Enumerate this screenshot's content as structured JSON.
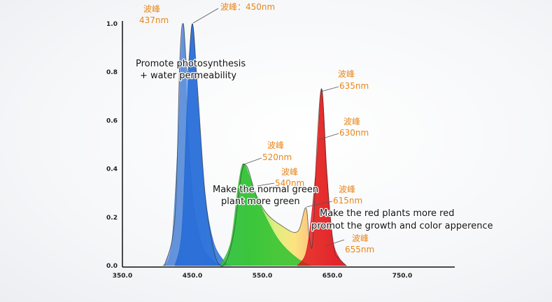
{
  "chart_data": {
    "type": "area",
    "title": "",
    "xlabel": "",
    "ylabel": "",
    "xlim": [
      350,
      750
    ],
    "ylim": [
      0,
      1.0
    ],
    "x_ticks": [
      "350.0",
      "450.0",
      "550.0",
      "650.0",
      "750.0"
    ],
    "y_ticks": [
      "0.0",
      "0.2",
      "0.4",
      "0.6",
      "0.8",
      "1.0"
    ],
    "grid": false,
    "series": [
      {
        "color": "#5b8fd6",
        "x": [
          408,
          420,
          430,
          437,
          443,
          452,
          465,
          480,
          490,
          500
        ],
        "y": [
          0,
          0.08,
          0.55,
          1.0,
          0.6,
          0.25,
          0.08,
          0.02,
          0.005,
          0
        ]
      },
      {
        "color": "#1f67d6",
        "x": [
          425,
          435,
          443,
          450,
          457,
          468,
          480,
          495,
          505
        ],
        "y": [
          0,
          0.15,
          0.7,
          1.0,
          0.72,
          0.3,
          0.1,
          0.02,
          0
        ]
      },
      {
        "color": "#2fc12f",
        "x": [
          490,
          505,
          515,
          522,
          530,
          540,
          555,
          575,
          600,
          620
        ],
        "y": [
          0,
          0.1,
          0.32,
          0.42,
          0.38,
          0.3,
          0.2,
          0.1,
          0.03,
          0
        ]
      },
      {
        "color": "#e0101a",
        "x": [
          600,
          612,
          620,
          628,
          635,
          642,
          650,
          660,
          670
        ],
        "y": [
          0,
          0.05,
          0.2,
          0.45,
          0.73,
          0.4,
          0.12,
          0.03,
          0
        ]
      }
    ],
    "overall_curve": {
      "x": [
        410,
        425,
        432,
        437,
        443,
        450,
        457,
        468,
        480,
        490,
        500,
        510,
        520,
        528,
        540,
        555,
        575,
        600,
        612,
        617,
        622,
        628,
        635,
        642,
        652,
        660,
        670
      ],
      "y": [
        0,
        0.2,
        0.85,
        1.0,
        0.8,
        1.0,
        0.75,
        0.3,
        0.07,
        0.0,
        0.03,
        0.15,
        0.38,
        0.41,
        0.3,
        0.22,
        0.17,
        0.14,
        0.24,
        0.12,
        0.1,
        0.5,
        0.73,
        0.38,
        0.08,
        0.03,
        0
      ]
    },
    "annotations": {
      "p437": {
        "label": "波峰",
        "value": "437nm"
      },
      "p450": {
        "label": "波峰：450nm"
      },
      "p635": {
        "label": "波峰",
        "value": "635nm"
      },
      "p630": {
        "label": "波峰",
        "value": "630nm"
      },
      "p520": {
        "label": "波峰",
        "value": "520nm"
      },
      "p540": {
        "label": "波峰",
        "value": "540nm"
      },
      "p615": {
        "label": "波峰",
        "value": "615nm"
      },
      "p655": {
        "label": "波峰",
        "value": "655nm"
      }
    },
    "notes": {
      "blue_line1": "Promote photosynthesis",
      "blue_line2": "+ water permeability",
      "green_line1": "Make the normal green",
      "green_line2": "plant more green",
      "red_line1": "Make the red plants more red",
      "red_line2": "promot the growth and color apperence"
    }
  }
}
